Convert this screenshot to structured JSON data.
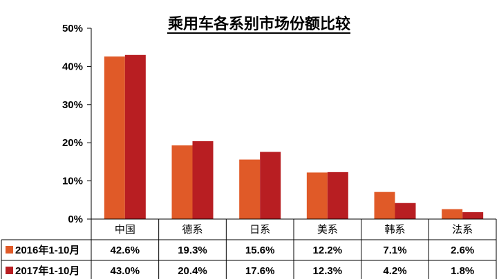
{
  "chart_data": {
    "type": "bar",
    "title": "乘用车各系别市场份额比较",
    "categories": [
      "中国",
      "德系",
      "日系",
      "美系",
      "韩系",
      "法系"
    ],
    "series": [
      {
        "name": "2016年1-10月",
        "values": [
          42.6,
          19.3,
          15.6,
          12.2,
          7.1,
          2.6
        ],
        "labels": [
          "42.6%",
          "19.3%",
          "15.6%",
          "12.2%",
          "7.1%",
          "2.6%"
        ],
        "color": "#E05A28"
      },
      {
        "name": "2017年1-10月",
        "values": [
          43.0,
          20.4,
          17.6,
          12.3,
          4.2,
          1.8
        ],
        "labels": [
          "43.0%",
          "20.4%",
          "17.6%",
          "12.3%",
          "4.2%",
          "1.8%"
        ],
        "color": "#B81E22"
      }
    ],
    "yticks": [
      "0%",
      "10%",
      "20%",
      "30%",
      "40%",
      "50%"
    ],
    "ylim": [
      0,
      50
    ],
    "grid": false,
    "legend": "data-table-left",
    "xlabel": "",
    "ylabel": ""
  }
}
